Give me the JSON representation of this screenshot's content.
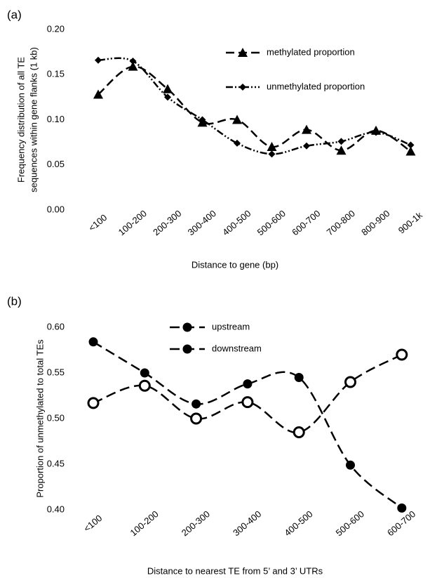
{
  "chart_data": [
    {
      "type": "line",
      "panel_label": "(a)",
      "ylabel": [
        "Frequency distribution of all TE",
        "sequences within gene flanks (1 kb)"
      ],
      "xlabel": "Distance to gene (bp)",
      "categories": [
        "<100",
        "100-200",
        "200-300",
        "300-400",
        "400-500",
        "500-600",
        "600-700",
        "700-800",
        "800-900",
        "900-1k"
      ],
      "series": [
        {
          "name": "methylated proportion",
          "color": "#000000",
          "marker": "triangle",
          "dash": "12 6",
          "values": [
            0.128,
            0.159,
            0.134,
            0.097,
            0.1,
            0.07,
            0.089,
            0.066,
            0.088,
            0.065
          ]
        },
        {
          "name": "unmethylated proportion",
          "color": "#000000",
          "marker": "diamond",
          "dash": "10 3 2 3 2 3",
          "values": [
            0.166,
            0.165,
            0.125,
            0.1,
            0.074,
            0.062,
            0.071,
            0.076,
            0.086,
            0.072
          ]
        }
      ],
      "ylim": [
        0,
        0.2
      ],
      "yticks": [
        {
          "value": 0,
          "label": "0.00"
        },
        {
          "value": 0.05,
          "label": "0.05"
        },
        {
          "value": 0.1,
          "label": "0.10"
        },
        {
          "value": 0.15,
          "label": "0.15"
        },
        {
          "value": 0.2,
          "label": "0.20"
        }
      ],
      "grid": false
    },
    {
      "type": "line",
      "panel_label": "(b)",
      "ylabel": [
        "Proportion of unmethylated to total TEs"
      ],
      "xlabel": "Distance to nearest TE from 5’ and 3’ UTRs",
      "categories": [
        "<100",
        "100-200",
        "200-300",
        "300-400",
        "400-500",
        "500-600",
        "600-700"
      ],
      "series": [
        {
          "name": "upstream",
          "color": "#000000",
          "marker": "circle",
          "dash": "14 7",
          "values": [
            0.584,
            0.55,
            0.516,
            0.538,
            0.545,
            0.449,
            0.402
          ]
        },
        {
          "name": "downstream",
          "color": "#000000",
          "marker": "open-circle",
          "dash": "14 7",
          "values": [
            0.517,
            0.536,
            0.5,
            0.518,
            0.485,
            0.54,
            0.57
          ]
        }
      ],
      "ylim": [
        0.4,
        0.6
      ],
      "yticks": [
        {
          "value": 0.4,
          "label": "0.40"
        },
        {
          "value": 0.45,
          "label": "0.45"
        },
        {
          "value": 0.5,
          "label": "0.50"
        },
        {
          "value": 0.55,
          "label": "0.55"
        },
        {
          "value": 0.6,
          "label": "0.60"
        }
      ],
      "grid": false
    }
  ]
}
